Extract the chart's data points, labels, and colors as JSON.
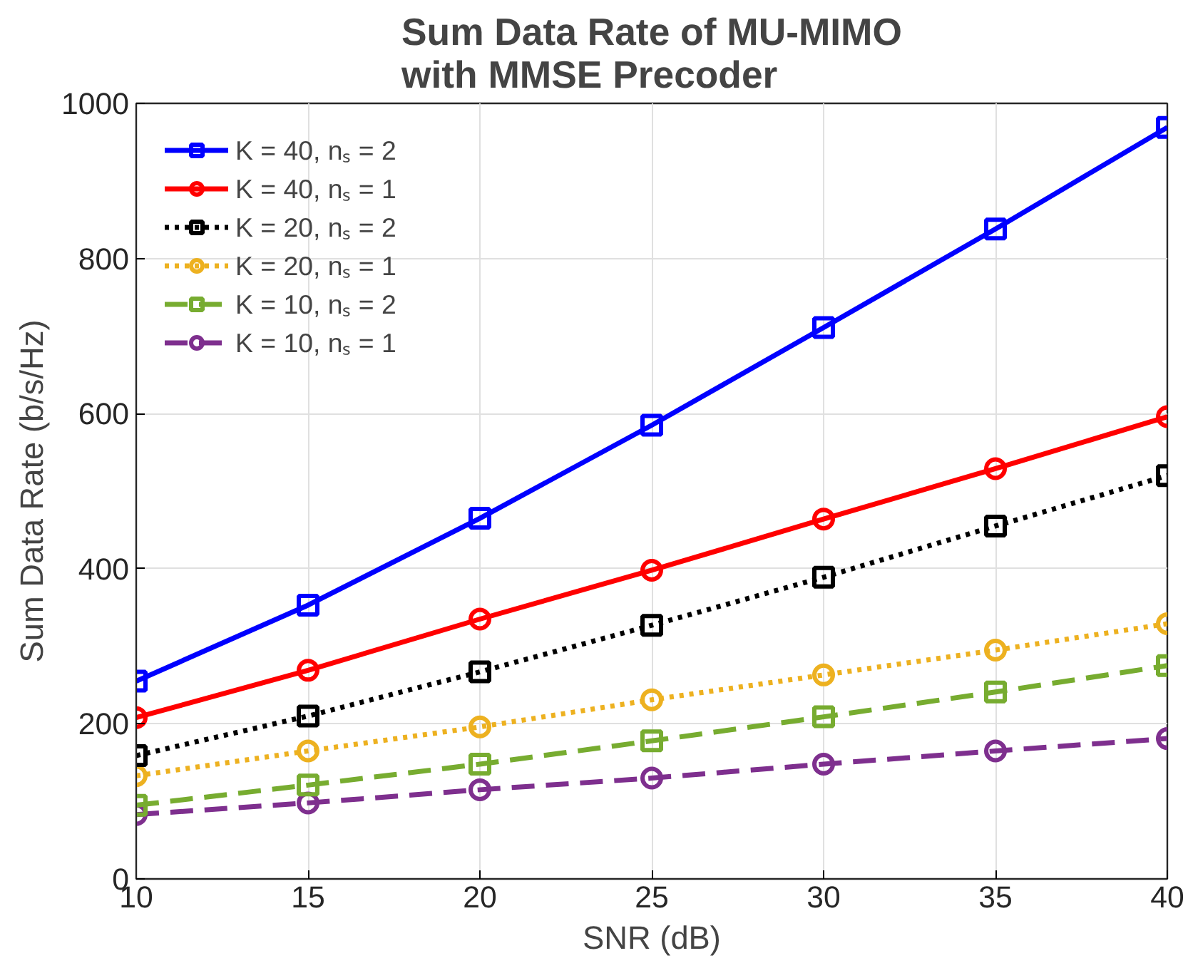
{
  "chart_data": {
    "type": "line",
    "title": "Sum Data Rate of MU-MIMO\nwith MMSE Precoder",
    "xlabel": "SNR (dB)",
    "ylabel": "Sum Data Rate (b/s/Hz)",
    "x": [
      10,
      15,
      20,
      25,
      30,
      35,
      40
    ],
    "series": [
      {
        "name": "K = 40, nₛ = 2",
        "color": "#0000ff",
        "marker": "square",
        "line_style": "solid",
        "values": [
          255,
          353,
          465,
          585,
          711,
          838,
          969
        ]
      },
      {
        "name": "K = 40, nₛ = 1",
        "color": "#ff0000",
        "marker": "circle",
        "line_style": "solid",
        "values": [
          208,
          269,
          335,
          398,
          464,
          529,
          596
        ]
      },
      {
        "name": "K = 20, nₛ = 2",
        "color": "#000000",
        "marker": "square",
        "line_style": "dotted",
        "values": [
          159,
          210,
          267,
          327,
          389,
          455,
          520
        ]
      },
      {
        "name": "K = 20, nₛ = 1",
        "color": "#edb120",
        "marker": "circle",
        "line_style": "dotted",
        "values": [
          133,
          165,
          196,
          231,
          263,
          295,
          329
        ]
      },
      {
        "name": "K = 10, nₛ = 2",
        "color": "#77ac30",
        "marker": "square",
        "line_style": "dashed",
        "values": [
          95,
          121,
          148,
          178,
          209,
          241,
          275
        ]
      },
      {
        "name": "K = 10, nₛ = 1",
        "color": "#7e2f8e",
        "marker": "circle",
        "line_style": "dashed",
        "values": [
          83,
          98,
          115,
          130,
          148,
          165,
          181
        ]
      }
    ],
    "xlim": [
      10,
      40
    ],
    "ylim": [
      0,
      1000
    ],
    "xticks": [
      10,
      15,
      20,
      25,
      30,
      35,
      40
    ],
    "yticks": [
      0,
      200,
      400,
      600,
      800,
      1000
    ],
    "grid": true,
    "legend": "top left"
  }
}
